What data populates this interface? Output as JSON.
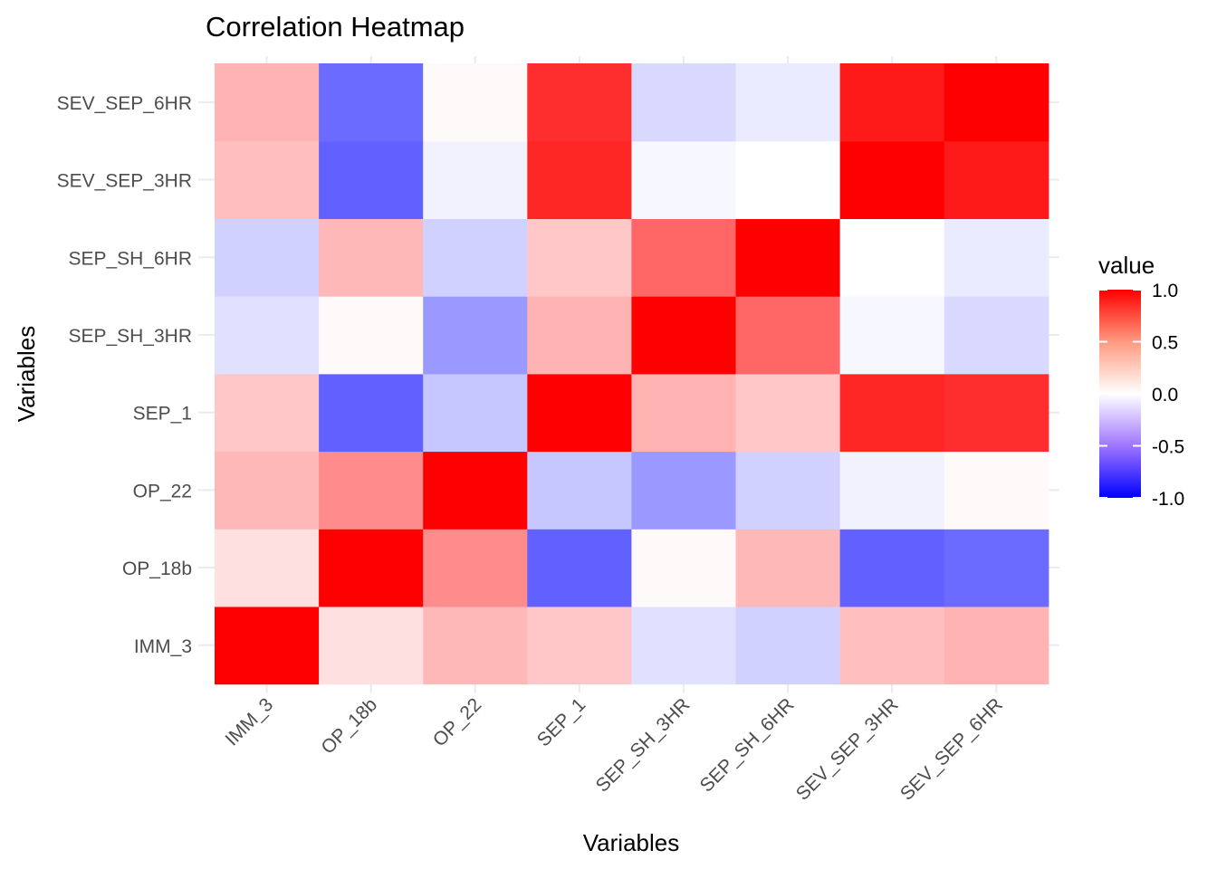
{
  "chart_data": {
    "type": "heatmap",
    "title": "Correlation Heatmap",
    "xlabel": "Variables",
    "ylabel": "Variables",
    "x_categories": [
      "IMM_3",
      "OP_18b",
      "OP_22",
      "SEP_1",
      "SEP_SH_3HR",
      "SEP_SH_6HR",
      "SEV_SEP_3HR",
      "SEV_SEP_6HR"
    ],
    "y_categories": [
      "IMM_3",
      "OP_18b",
      "OP_22",
      "SEP_1",
      "SEP_SH_3HR",
      "SEP_SH_6HR",
      "SEV_SEP_3HR",
      "SEV_SEP_6HR"
    ],
    "values": [
      [
        1.0,
        0.12,
        0.28,
        0.22,
        -0.12,
        -0.18,
        0.25,
        0.3
      ],
      [
        0.12,
        1.0,
        0.45,
        -0.62,
        0.02,
        0.28,
        -0.62,
        -0.58
      ],
      [
        0.28,
        0.45,
        1.0,
        -0.22,
        -0.4,
        -0.18,
        -0.05,
        0.02
      ],
      [
        0.22,
        -0.62,
        -0.22,
        1.0,
        0.3,
        0.22,
        0.85,
        0.82
      ],
      [
        -0.12,
        0.02,
        -0.4,
        0.3,
        1.0,
        0.6,
        -0.03,
        -0.15
      ],
      [
        -0.18,
        0.28,
        -0.18,
        0.22,
        0.6,
        1.0,
        0.0,
        -0.08
      ],
      [
        0.25,
        -0.62,
        -0.05,
        0.85,
        -0.03,
        0.0,
        1.0,
        0.9
      ],
      [
        0.3,
        -0.58,
        0.02,
        0.82,
        -0.15,
        -0.08,
        0.9,
        1.0
      ]
    ],
    "color_scale": {
      "low_color": "#0000ff",
      "mid_color": "#ffffff",
      "high_color": "#ff0000",
      "limits": [
        -1.0,
        1.0
      ]
    },
    "legend": {
      "title": "value",
      "position": "right",
      "ticks": [
        "1.0",
        "0.5",
        "0.0",
        "-0.5",
        "-1.0"
      ],
      "tick_values": [
        1.0,
        0.5,
        0.0,
        -0.5,
        -1.0
      ]
    },
    "grid": true
  }
}
